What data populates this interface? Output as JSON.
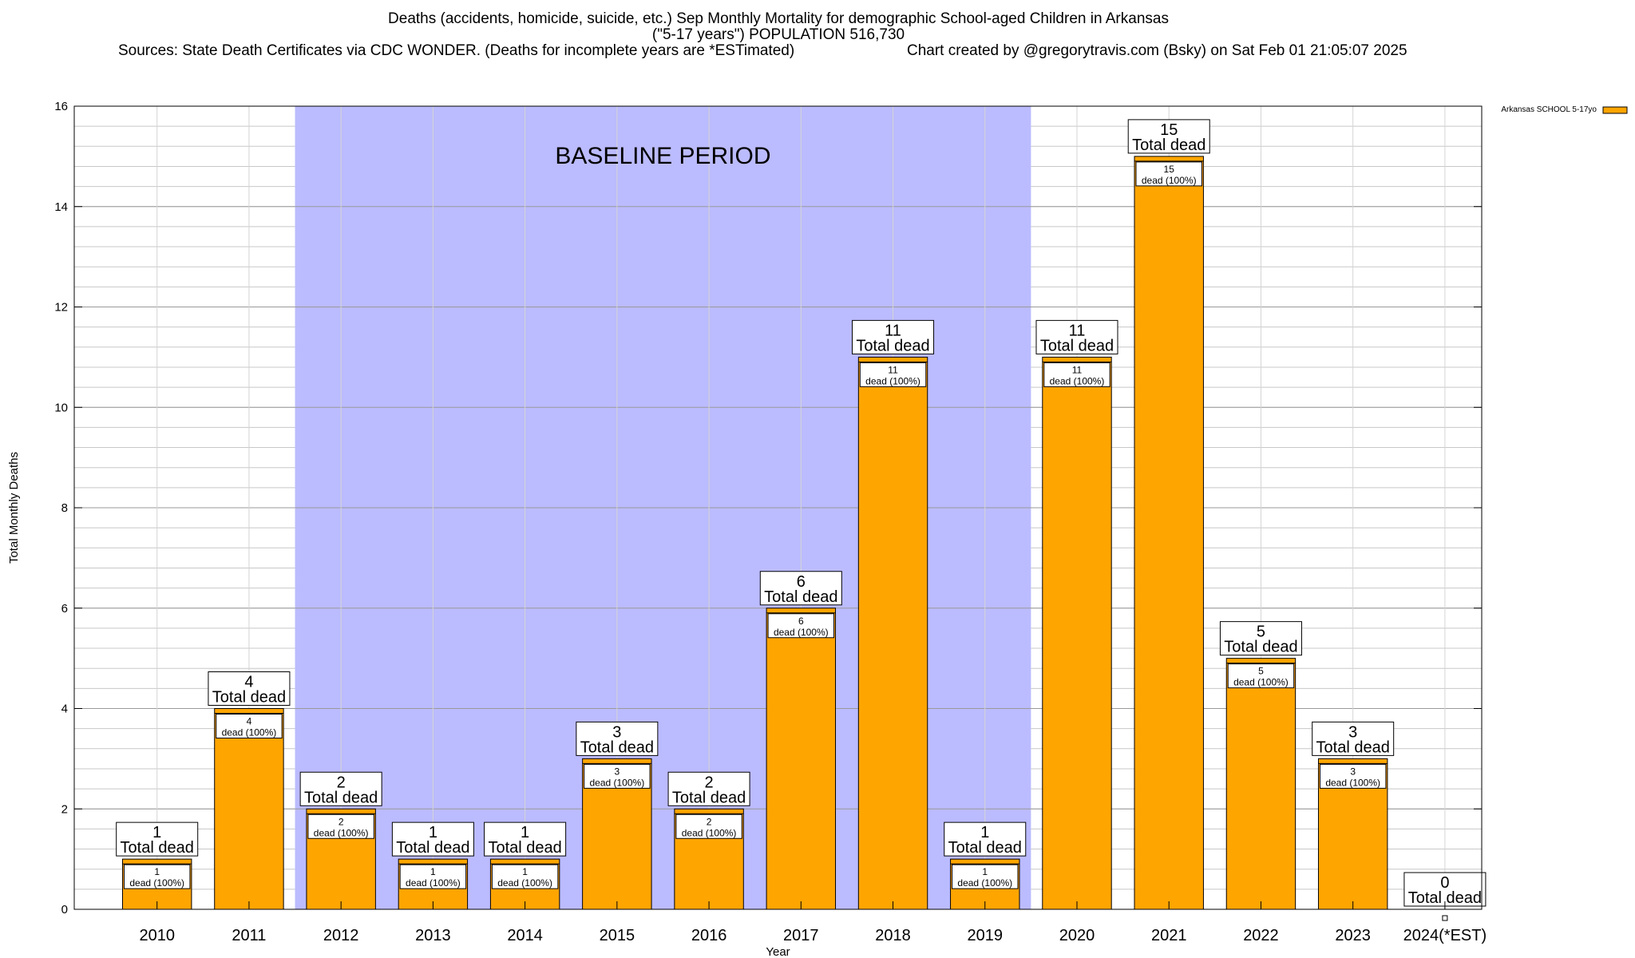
{
  "chart_data": {
    "type": "bar",
    "title_line1": "Deaths (accidents, homicide, suicide, etc.) Sep Monthly Mortality for demographic School-aged Children in Arkansas",
    "title_line2": "(\"5-17 years\") POPULATION 516,730",
    "subtitle_sources": "Sources: State Death Certificates via CDC WONDER. (Deaths for incomplete years are *ESTimated)",
    "subtitle_credit": "Chart created by @gregorytravis.com (Bsky) on Sat Feb 01 21:05:07 2025",
    "xlabel": "Year",
    "ylabel": "Total Monthly Deaths",
    "ylim": [
      0,
      16
    ],
    "y_ticks": [
      0,
      2,
      4,
      6,
      8,
      10,
      12,
      14,
      16
    ],
    "y_minor_step": 0.4,
    "grid": true,
    "categories": [
      "2010",
      "2011",
      "2012",
      "2013",
      "2014",
      "2015",
      "2016",
      "2017",
      "2018",
      "2019",
      "2020",
      "2021",
      "2022",
      "2023",
      "2024(*EST)"
    ],
    "values": [
      1,
      4,
      2,
      1,
      1,
      3,
      2,
      6,
      11,
      1,
      11,
      15,
      5,
      3,
      0
    ],
    "series_name": "Arkansas SCHOOL 5-17yo",
    "legend_position": "top-right",
    "bar_color": "#FFA500",
    "baseline_color": "#BBBBFF",
    "baseline_label": "BASELINE PERIOD",
    "baseline_range": [
      "2012",
      "2019"
    ],
    "total_label_suffix": "Total dead",
    "inner_label_suffix": "dead (100%)"
  }
}
